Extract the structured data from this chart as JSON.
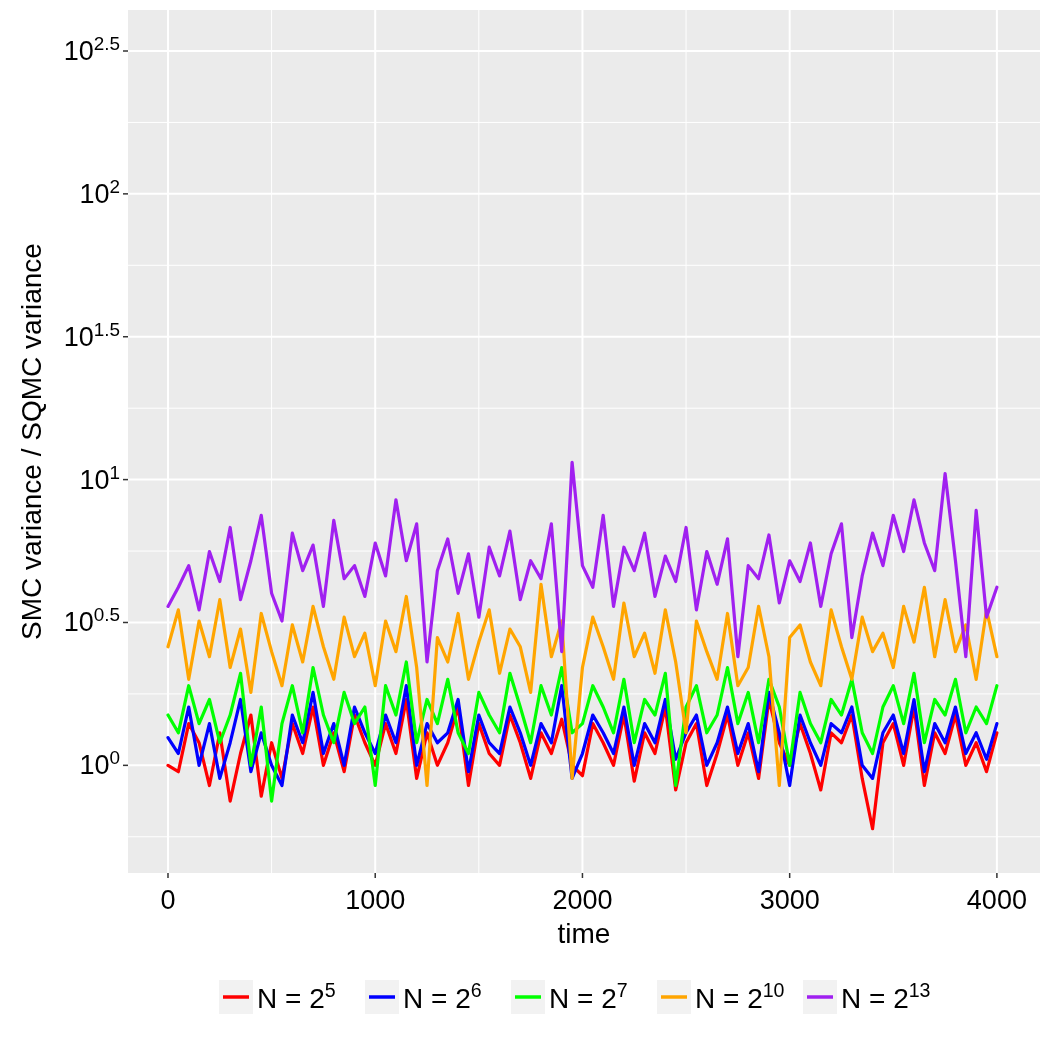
{
  "chart_data": {
    "type": "line",
    "xlabel": "time",
    "ylabel": "SMC variance / SQMC variance",
    "log": "y",
    "grid": true,
    "legend": "bottom",
    "line_style": "solid",
    "xlim": [
      -193,
      4208
    ],
    "ylim": [
      0.42,
      440
    ],
    "xticks": [
      0,
      1000,
      2000,
      3000,
      4000,
      {
        "value": 500,
        "label": null
      },
      {
        "value": 1500,
        "label": null
      },
      {
        "value": 2500,
        "label": null
      },
      {
        "value": 3500,
        "label": null
      }
    ],
    "yticks": [
      {
        "value": 1,
        "label": "10$^{0}$"
      },
      {
        "value": 3.162,
        "label": "10$^{0.5}$"
      },
      {
        "value": 10,
        "label": "10$^{1}$"
      },
      {
        "value": 31.62,
        "label": "10$^{1.5}$"
      },
      {
        "value": 100,
        "label": "10$^{2}$"
      },
      {
        "value": 316.2,
        "label": "10$^{2.5}$"
      },
      {
        "value": 0.5623,
        "label": null
      },
      {
        "value": 1.778,
        "label": null
      },
      {
        "value": 5.623,
        "label": null
      },
      {
        "value": 17.78,
        "label": null
      },
      {
        "value": 56.23,
        "label": null
      },
      {
        "value": 177.8,
        "label": null
      }
    ],
    "x": [
      0,
      50,
      100,
      150,
      200,
      250,
      300,
      350,
      400,
      450,
      500,
      550,
      600,
      650,
      700,
      750,
      800,
      850,
      900,
      950,
      1000,
      1050,
      1100,
      1150,
      1200,
      1250,
      1300,
      1350,
      1400,
      1450,
      1500,
      1550,
      1600,
      1650,
      1700,
      1750,
      1800,
      1850,
      1900,
      1950,
      2000,
      2050,
      2100,
      2150,
      2200,
      2250,
      2300,
      2350,
      2400,
      2450,
      2500,
      2550,
      2600,
      2650,
      2700,
      2750,
      2800,
      2850,
      2900,
      2950,
      3000,
      3050,
      3100,
      3150,
      3200,
      3250,
      3300,
      3350,
      3400,
      3450,
      3500,
      3550,
      3600,
      3650,
      3700,
      3750,
      3800,
      3850,
      3900,
      3950,
      4000
    ],
    "series": [
      {
        "name": "N = 2$^{5}$",
        "color": "#ff0000",
        "values": [
          1.0,
          0.95,
          1.4,
          1.2,
          0.85,
          1.3,
          0.75,
          1.1,
          1.5,
          0.78,
          1.2,
          0.9,
          1.4,
          1.1,
          1.6,
          1.0,
          1.3,
          0.95,
          1.5,
          1.2,
          1.0,
          1.4,
          1.1,
          1.7,
          0.9,
          1.3,
          1.0,
          1.2,
          1.6,
          0.85,
          1.4,
          1.1,
          1.0,
          1.5,
          1.2,
          0.9,
          1.3,
          1.1,
          1.45,
          1.0,
          0.92,
          1.4,
          1.2,
          1.0,
          1.5,
          0.88,
          1.3,
          1.1,
          1.6,
          0.82,
          1.2,
          1.4,
          0.85,
          1.1,
          1.5,
          1.0,
          1.3,
          0.9,
          1.7,
          1.2,
          1.0,
          1.4,
          1.1,
          0.82,
          1.3,
          1.2,
          1.5,
          0.9,
          0.6,
          1.2,
          1.4,
          1.0,
          1.6,
          0.85,
          1.3,
          1.1,
          1.5,
          1.0,
          1.2,
          0.95,
          1.3
        ]
      },
      {
        "name": "N = 2$^{6}$",
        "color": "#0000ff",
        "values": [
          1.25,
          1.1,
          1.6,
          1.0,
          1.4,
          0.9,
          1.2,
          1.7,
          0.95,
          1.3,
          1.0,
          0.85,
          1.5,
          1.2,
          1.8,
          1.1,
          1.4,
          1.0,
          1.6,
          1.3,
          1.1,
          1.5,
          1.2,
          1.9,
          1.0,
          1.4,
          1.2,
          1.3,
          1.7,
          0.95,
          1.5,
          1.2,
          1.1,
          1.6,
          1.3,
          1.0,
          1.4,
          1.2,
          1.9,
          0.9,
          1.1,
          1.5,
          1.3,
          1.1,
          1.6,
          1.0,
          1.4,
          1.2,
          1.7,
          1.05,
          1.3,
          1.5,
          1.0,
          1.2,
          1.6,
          1.1,
          1.4,
          0.95,
          1.8,
          1.3,
          0.85,
          1.5,
          1.2,
          1.0,
          1.4,
          1.3,
          1.6,
          1.0,
          0.9,
          1.3,
          1.5,
          1.1,
          1.7,
          0.95,
          1.4,
          1.2,
          1.6,
          1.1,
          1.3,
          1.05,
          1.4
        ]
      },
      {
        "name": "N = 2$^{7}$",
        "color": "#00ff00",
        "values": [
          1.5,
          1.3,
          1.9,
          1.4,
          1.7,
          1.2,
          1.5,
          2.1,
          1.0,
          1.6,
          0.75,
          1.4,
          1.9,
          1.3,
          2.2,
          1.5,
          1.2,
          1.8,
          1.4,
          1.6,
          0.85,
          1.9,
          1.5,
          2.3,
          1.2,
          1.7,
          1.4,
          2.0,
          1.3,
          1.1,
          1.8,
          1.5,
          1.3,
          2.1,
          1.6,
          1.2,
          1.9,
          1.5,
          2.2,
          1.3,
          1.4,
          1.9,
          1.6,
          1.3,
          2.0,
          1.2,
          1.7,
          1.5,
          2.1,
          0.85,
          1.6,
          1.9,
          1.3,
          1.5,
          2.2,
          1.4,
          1.8,
          1.2,
          2.0,
          1.6,
          1.0,
          1.8,
          1.4,
          1.2,
          1.7,
          1.5,
          2.0,
          1.3,
          1.1,
          1.6,
          1.9,
          1.4,
          2.1,
          1.2,
          1.7,
          1.5,
          2.0,
          1.3,
          1.6,
          1.4,
          1.9
        ]
      },
      {
        "name": "N = 2$^{10}$",
        "color": "#ffa500",
        "values": [
          2.6,
          3.5,
          2.0,
          3.2,
          2.4,
          3.8,
          2.2,
          3.0,
          1.8,
          3.4,
          2.5,
          1.9,
          3.1,
          2.3,
          3.6,
          2.6,
          2.0,
          3.3,
          2.4,
          2.9,
          1.9,
          3.2,
          2.5,
          3.9,
          2.2,
          0.85,
          2.8,
          2.3,
          3.4,
          2.0,
          2.7,
          3.5,
          2.1,
          3.0,
          2.6,
          1.8,
          4.3,
          2.4,
          3.2,
          0.9,
          2.2,
          3.3,
          2.6,
          2.0,
          3.7,
          2.4,
          2.9,
          2.1,
          3.5,
          2.3,
          1.3,
          3.2,
          2.5,
          2.0,
          3.4,
          1.9,
          2.2,
          3.6,
          2.4,
          0.85,
          2.8,
          3.1,
          2.3,
          1.9,
          3.5,
          2.6,
          2.0,
          3.3,
          2.5,
          2.9,
          2.2,
          3.6,
          2.7,
          4.2,
          2.4,
          3.8,
          2.5,
          3.1,
          2.0,
          3.5,
          2.4
        ]
      },
      {
        "name": "N = 2$^{13}$",
        "color": "#a020f0",
        "values": [
          3.6,
          4.2,
          5.0,
          3.5,
          5.6,
          4.4,
          6.8,
          3.8,
          5.2,
          7.5,
          4.0,
          3.2,
          6.5,
          4.8,
          5.9,
          3.6,
          7.2,
          4.5,
          5.0,
          3.9,
          6.0,
          4.6,
          8.5,
          5.2,
          7.0,
          2.3,
          4.8,
          6.2,
          4.0,
          5.5,
          3.3,
          5.8,
          4.6,
          6.6,
          3.8,
          5.2,
          4.5,
          7.0,
          2.5,
          11.5,
          5.0,
          4.2,
          7.5,
          3.6,
          5.8,
          4.8,
          6.5,
          3.9,
          5.4,
          4.4,
          6.8,
          3.5,
          5.6,
          4.3,
          6.2,
          2.4,
          5.0,
          4.5,
          6.4,
          3.7,
          5.2,
          4.4,
          6.0,
          3.6,
          5.5,
          7.0,
          2.8,
          4.6,
          6.5,
          5.0,
          7.5,
          5.6,
          8.5,
          6.0,
          4.8,
          10.5,
          5.2,
          2.4,
          7.8,
          3.3,
          4.2
        ]
      }
    ]
  }
}
